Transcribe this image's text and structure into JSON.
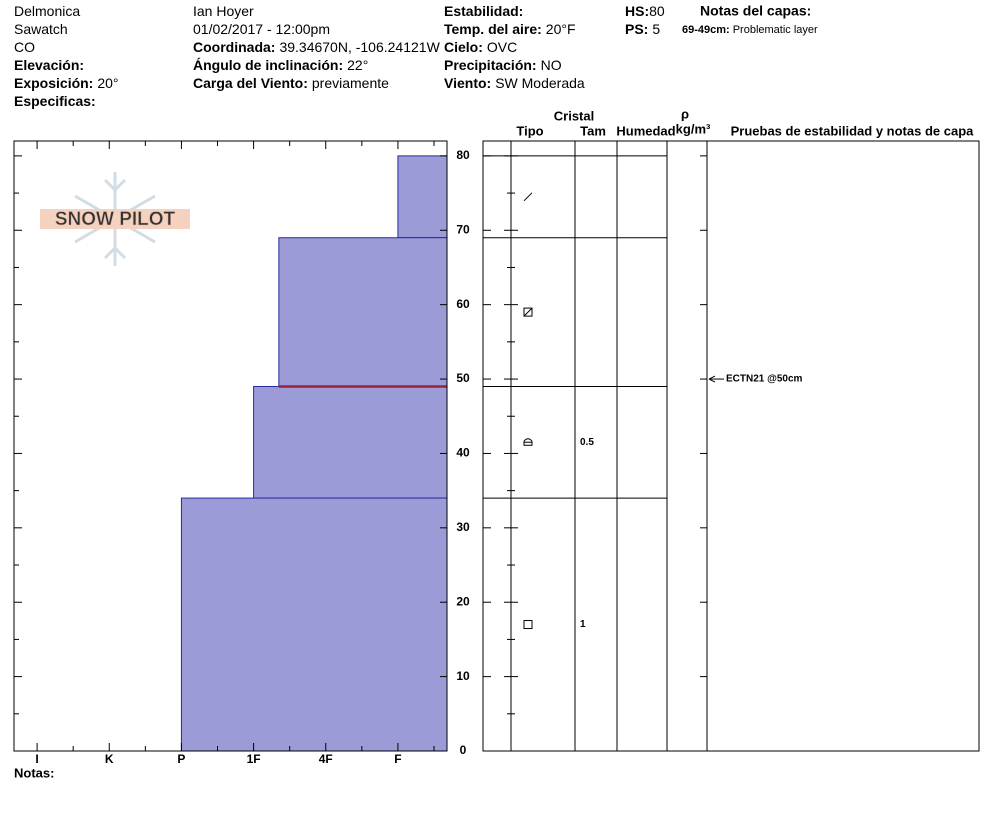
{
  "header": {
    "columns": [
      [
        {
          "text": "Delmonica"
        },
        {
          "text": "Sawatch"
        },
        {
          "text": "CO"
        },
        {
          "label": "Elevación:"
        },
        {
          "label": "Exposición:",
          "value": "20°"
        },
        {
          "label": "Especificas:"
        }
      ],
      [
        {
          "text": "Ian Hoyer"
        },
        {
          "text": "01/02/2017 - 12:00pm"
        },
        {
          "label": "Coordinada:",
          "value": "39.34670N, -106.24121W"
        },
        {
          "label": "Ángulo de inclinación:",
          "value": "22°"
        },
        {
          "label": "Carga del Viento:",
          "value": "previamente"
        }
      ],
      [
        {
          "label": "Estabilidad:"
        },
        {
          "label": "Temp. del aire:",
          "value": "20°F"
        },
        {
          "label": "Cielo:",
          "value": "OVC"
        },
        {
          "label": "Precipitación:",
          "value": "NO"
        },
        {
          "label": "Viento:",
          "value": "SW Moderada"
        }
      ],
      [
        {
          "label": "HS:",
          "value": 80
        },
        {
          "label": "PS:",
          "value": 5
        }
      ]
    ],
    "layer_notes": {
      "title": "Notas del capas:",
      "items": [
        {
          "label": "69-49cm:",
          "value": "Problematic layer"
        }
      ]
    }
  },
  "logo": "SNOW PILOT",
  "table_headers": {
    "crystal": "Cristal",
    "type": "Tipo",
    "size": "Tam",
    "moisture": "Humedad",
    "density": "ρ",
    "density_unit": "kg/m³",
    "tests": "Pruebas de estabilidad y notas de capa"
  },
  "notes_label": "Notas:",
  "chart_data": {
    "type": "snow-profile",
    "ylim": [
      0,
      82
    ],
    "yticks": [
      0,
      10,
      20,
      30,
      40,
      50,
      60,
      70,
      80
    ],
    "hardness_categories": [
      "I",
      "K",
      "P",
      "1F",
      "4F",
      "F"
    ],
    "xlim": [
      -0.32,
      5.68
    ],
    "color": "#9b9bd7",
    "layers": [
      {
        "top": 80,
        "bottom": 69,
        "hardness": 5,
        "size": null
      },
      {
        "top": 69,
        "bottom": 49,
        "hardness": 3.35,
        "size": null
      },
      {
        "top": 49,
        "bottom": 34,
        "hardness": 3,
        "size": 0.5
      },
      {
        "top": 34,
        "bottom": 0,
        "hardness": 2,
        "size": 1
      }
    ],
    "flagged_depth": 49,
    "flagged_color": "#a0203a",
    "tests": [
      {
        "label": "ECTN21 @50cm",
        "depth": 50
      }
    ]
  }
}
